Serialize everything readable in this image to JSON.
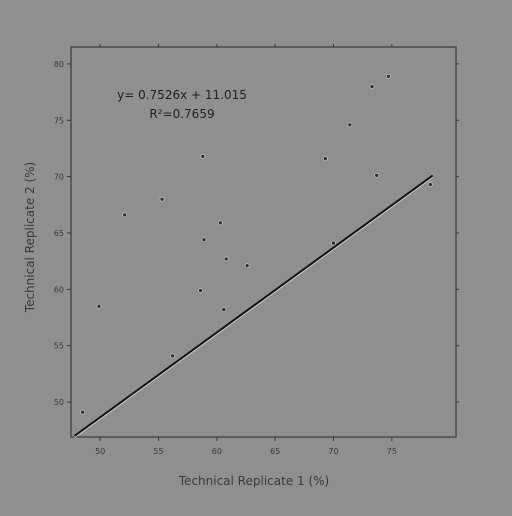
{
  "chart_data": {
    "type": "scatter",
    "title": "",
    "xlabel": "Technical Replicate 1 (%)",
    "ylabel": "Technical Replicate 2 (%)",
    "xlim": [
      47.5,
      80.5
    ],
    "ylim": [
      46.9,
      81.5
    ],
    "xticks": [
      50,
      55,
      60,
      65,
      70,
      75
    ],
    "yticks": [
      50,
      55,
      60,
      65,
      70,
      75,
      80
    ],
    "grid": false,
    "points": [
      {
        "x": 48.5,
        "y": 49.1
      },
      {
        "x": 49.9,
        "y": 58.5
      },
      {
        "x": 52.1,
        "y": 66.6
      },
      {
        "x": 55.3,
        "y": 68.0
      },
      {
        "x": 56.2,
        "y": 54.1
      },
      {
        "x": 58.6,
        "y": 59.9
      },
      {
        "x": 58.8,
        "y": 71.8
      },
      {
        "x": 58.9,
        "y": 64.4
      },
      {
        "x": 60.3,
        "y": 65.9
      },
      {
        "x": 60.6,
        "y": 58.2
      },
      {
        "x": 60.8,
        "y": 62.7
      },
      {
        "x": 62.6,
        "y": 62.1
      },
      {
        "x": 69.3,
        "y": 71.6
      },
      {
        "x": 70.0,
        "y": 64.1
      },
      {
        "x": 71.4,
        "y": 74.6
      },
      {
        "x": 73.3,
        "y": 78.0
      },
      {
        "x": 73.7,
        "y": 70.1
      },
      {
        "x": 74.7,
        "y": 78.9
      },
      {
        "x": 78.3,
        "y": 69.3
      }
    ],
    "trendline": {
      "slope": 0.7526,
      "intercept": 11.015,
      "x_start": 47.8,
      "x_end": 78.5
    },
    "annotations": {
      "equation": "y= 0.7526x + 11.015",
      "r_squared": "R²=0.7659"
    }
  }
}
